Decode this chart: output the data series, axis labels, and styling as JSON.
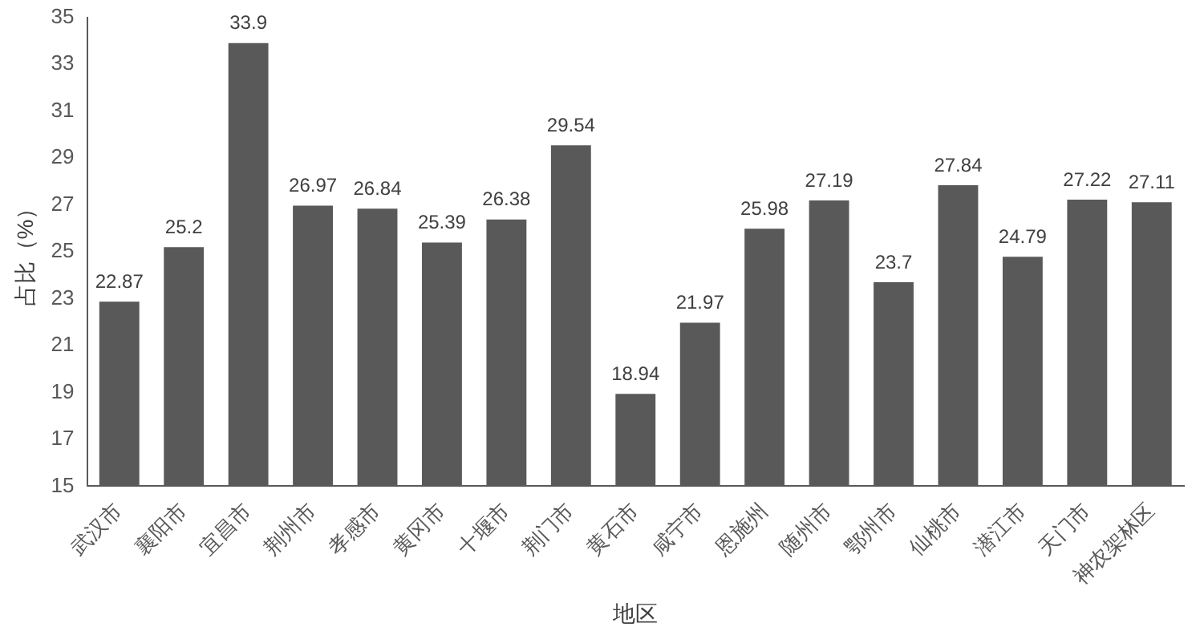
{
  "chart_data": {
    "type": "bar",
    "xlabel": "地区",
    "ylabel": "占比（%）",
    "categories": [
      "武汉市",
      "襄阳市",
      "宜昌市",
      "荆州市",
      "孝感市",
      "黄冈市",
      "十堰市",
      "荆门市",
      "黄石市",
      "咸宁市",
      "恩施州",
      "随州市",
      "鄂州市",
      "仙桃市",
      "潜江市",
      "天门市",
      "神农架林区"
    ],
    "values": [
      22.87,
      25.2,
      33.9,
      26.97,
      26.84,
      25.39,
      26.38,
      29.54,
      18.94,
      21.97,
      25.98,
      27.19,
      23.7,
      27.84,
      24.79,
      27.22,
      27.11
    ],
    "color": "#595959",
    "ylim": [
      15,
      35
    ],
    "yticks": [
      15,
      17,
      19,
      21,
      23,
      25,
      27,
      29,
      31,
      33,
      35
    ],
    "grid": false,
    "legend": false,
    "data_labels": true
  }
}
